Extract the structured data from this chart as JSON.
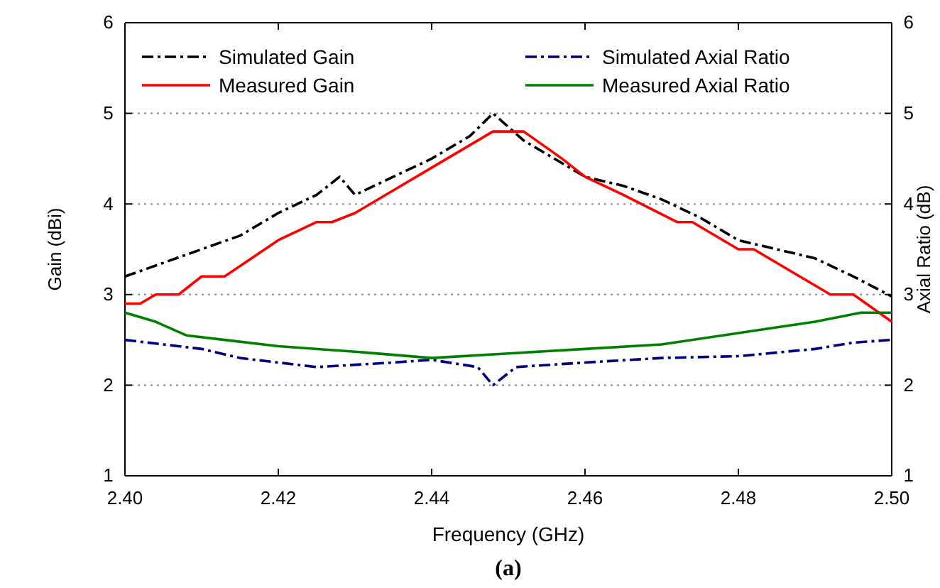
{
  "chart_data": {
    "type": "line",
    "xlabel": "Frequency (GHz)",
    "ylabel": "Gain (dBi)",
    "y2label": "Axial Ratio (dB)",
    "xlim": [
      2.4,
      2.5
    ],
    "xticks": [
      {
        "value": 2.4,
        "label": "2.40"
      },
      {
        "value": 2.42,
        "label": "2.42"
      },
      {
        "value": 2.44,
        "label": "2.44"
      },
      {
        "value": 2.46,
        "label": "2.46"
      },
      {
        "value": 2.48,
        "label": "2.48"
      },
      {
        "value": 2.5,
        "label": "2.50"
      }
    ],
    "ylim": [
      1,
      6
    ],
    "yticks": [
      1,
      2,
      3,
      4,
      5,
      6
    ],
    "y2lim": [
      1,
      6
    ],
    "y2ticks": [
      1,
      2,
      3,
      4,
      5,
      6
    ],
    "grid": "y",
    "legend": "top",
    "annotations": [
      "(a)"
    ],
    "series": [
      {
        "name": "Simulated Gain",
        "color": "#000000",
        "line_style": "dashdot",
        "x": [
          2.4,
          2.405,
          2.41,
          2.415,
          2.42,
          2.425,
          2.428,
          2.43,
          2.435,
          2.44,
          2.445,
          2.448,
          2.452,
          2.456,
          2.46,
          2.465,
          2.47,
          2.475,
          2.48,
          2.485,
          2.49,
          2.495,
          2.5
        ],
        "values": [
          3.2,
          3.35,
          3.5,
          3.65,
          3.9,
          4.1,
          4.3,
          4.1,
          4.3,
          4.5,
          4.75,
          5.0,
          4.7,
          4.5,
          4.3,
          4.2,
          4.05,
          3.85,
          3.6,
          3.5,
          3.4,
          3.2,
          2.98
        ]
      },
      {
        "name": "Measured Gain",
        "color": "#ff0000",
        "line_style": "solid",
        "x": [
          2.4,
          2.402,
          2.404,
          2.407,
          2.41,
          2.413,
          2.42,
          2.425,
          2.427,
          2.43,
          2.44,
          2.448,
          2.452,
          2.457,
          2.46,
          2.465,
          2.472,
          2.474,
          2.48,
          2.482,
          2.492,
          2.495,
          2.5
        ],
        "values": [
          2.9,
          2.9,
          3.0,
          3.0,
          3.2,
          3.2,
          3.6,
          3.8,
          3.8,
          3.9,
          4.4,
          4.8,
          4.8,
          4.5,
          4.3,
          4.1,
          3.8,
          3.8,
          3.5,
          3.5,
          3.0,
          3.0,
          2.7
        ]
      },
      {
        "name": "Simulated Axial Ratio",
        "color": "#000080",
        "line_style": "dashdot",
        "axis": "y2",
        "x": [
          2.4,
          2.41,
          2.415,
          2.425,
          2.435,
          2.44,
          2.446,
          2.448,
          2.451,
          2.46,
          2.47,
          2.48,
          2.49,
          2.495,
          2.5
        ],
        "values": [
          2.5,
          2.4,
          2.3,
          2.2,
          2.25,
          2.28,
          2.2,
          2.0,
          2.2,
          2.25,
          2.3,
          2.32,
          2.4,
          2.47,
          2.5
        ]
      },
      {
        "name": "Measured Axial Ratio",
        "color": "#008000",
        "line_style": "solid",
        "axis": "y2",
        "x": [
          2.4,
          2.404,
          2.408,
          2.413,
          2.42,
          2.43,
          2.44,
          2.45,
          2.46,
          2.47,
          2.478,
          2.482,
          2.49,
          2.496,
          2.5
        ],
        "values": [
          2.8,
          2.7,
          2.55,
          2.5,
          2.43,
          2.37,
          2.3,
          2.35,
          2.4,
          2.45,
          2.55,
          2.6,
          2.7,
          2.8,
          2.8
        ]
      }
    ]
  }
}
